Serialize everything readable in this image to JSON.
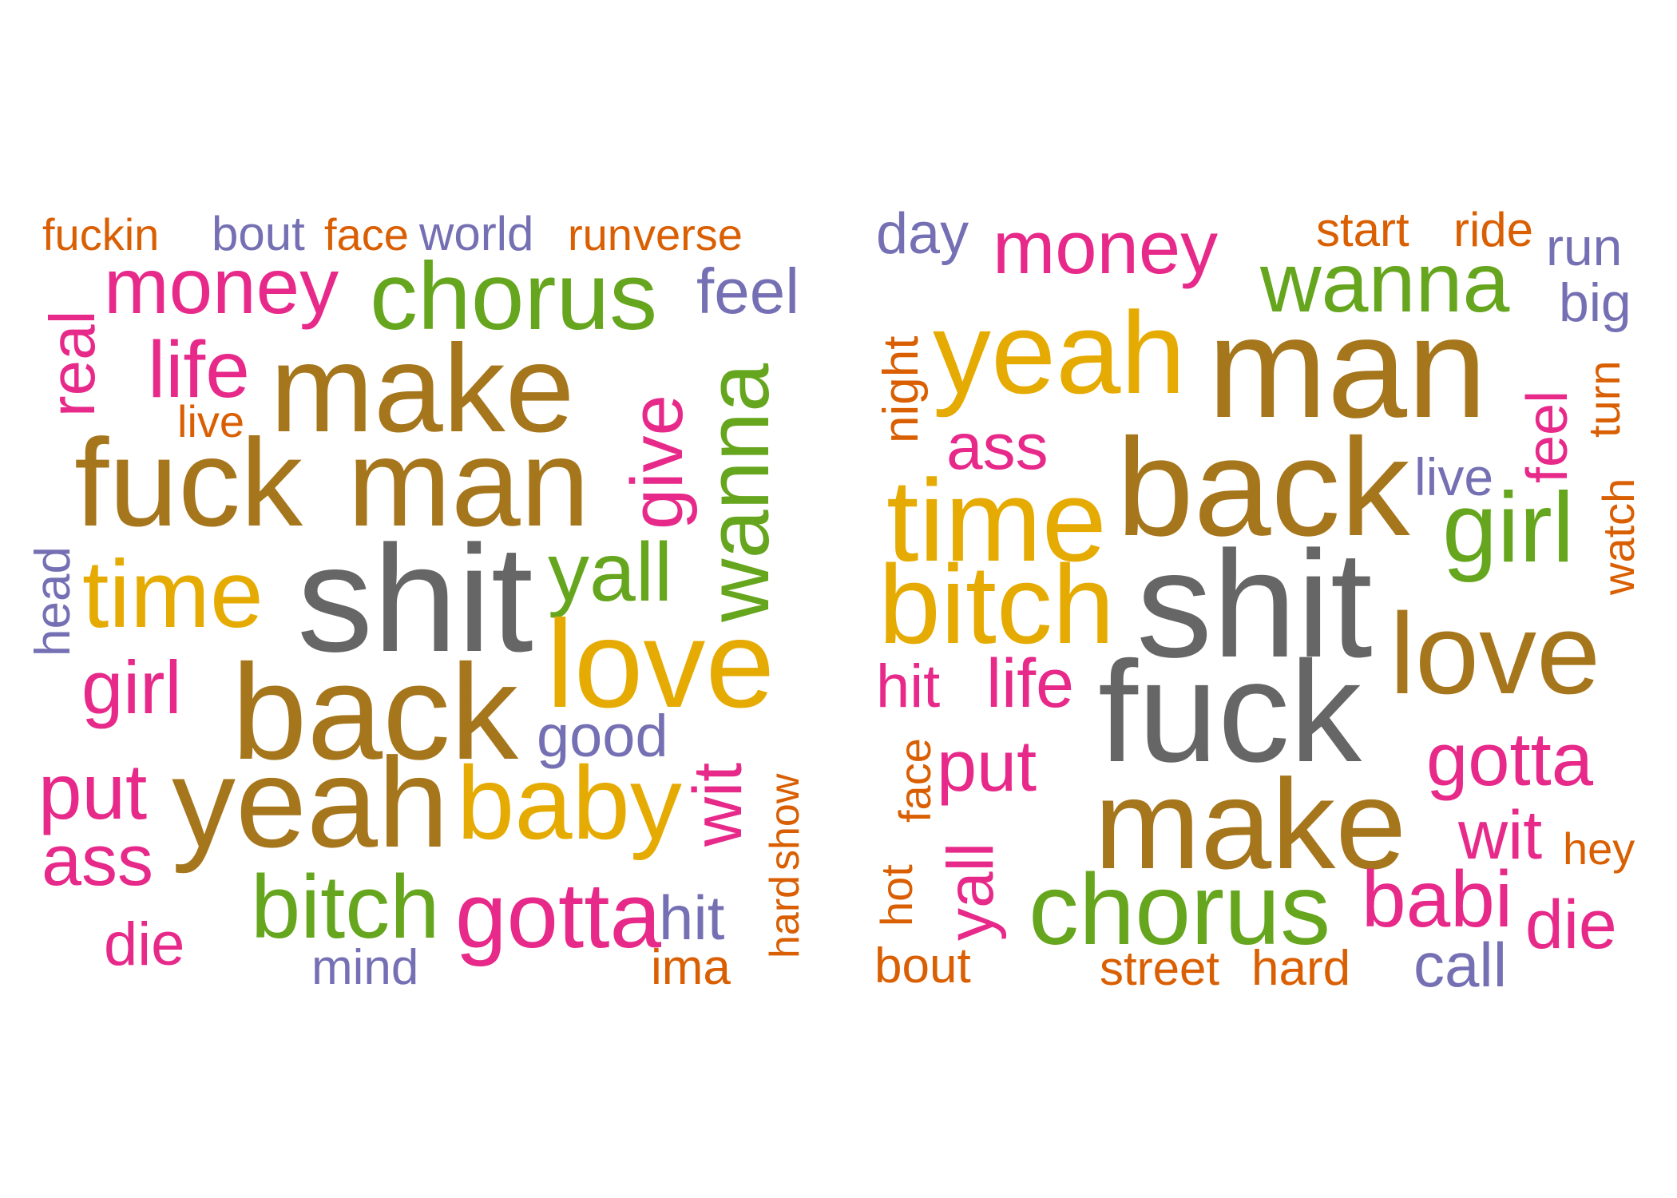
{
  "palette": {
    "orange": "#D95F02",
    "purple": "#7570B3",
    "pink": "#E7298A",
    "green": "#66A61E",
    "gold": "#E6AB02",
    "brown": "#A6761D",
    "gray": "#666666"
  },
  "clouds": [
    {
      "words": [
        {
          "text": "fuckin",
          "color": "orange"
        },
        {
          "text": "bout",
          "color": "purple"
        },
        {
          "text": "face",
          "color": "orange"
        },
        {
          "text": "world",
          "color": "purple"
        },
        {
          "text": "run",
          "color": "orange"
        },
        {
          "text": "verse",
          "color": "orange"
        },
        {
          "text": "money",
          "color": "pink"
        },
        {
          "text": "chorus",
          "color": "green"
        },
        {
          "text": "feel",
          "color": "purple"
        },
        {
          "text": "real",
          "color": "pink"
        },
        {
          "text": "life",
          "color": "pink"
        },
        {
          "text": "make",
          "color": "brown"
        },
        {
          "text": "live",
          "color": "orange"
        },
        {
          "text": "give",
          "color": "pink"
        },
        {
          "text": "wanna",
          "color": "green"
        },
        {
          "text": "fuck",
          "color": "brown"
        },
        {
          "text": "man",
          "color": "brown"
        },
        {
          "text": "head",
          "color": "purple"
        },
        {
          "text": "time",
          "color": "gold"
        },
        {
          "text": "shit",
          "color": "gray"
        },
        {
          "text": "yall",
          "color": "green"
        },
        {
          "text": "love",
          "color": "gold"
        },
        {
          "text": "girl",
          "color": "pink"
        },
        {
          "text": "back",
          "color": "brown"
        },
        {
          "text": "good",
          "color": "purple"
        },
        {
          "text": "hard",
          "color": "orange"
        },
        {
          "text": "show",
          "color": "orange"
        },
        {
          "text": "put",
          "color": "pink"
        },
        {
          "text": "wit",
          "color": "pink"
        },
        {
          "text": "yeah",
          "color": "brown"
        },
        {
          "text": "baby",
          "color": "gold"
        },
        {
          "text": "ass",
          "color": "pink"
        },
        {
          "text": "bitch",
          "color": "green"
        },
        {
          "text": "gotta",
          "color": "pink"
        },
        {
          "text": "hit",
          "color": "purple"
        },
        {
          "text": "die",
          "color": "pink"
        },
        {
          "text": "mind",
          "color": "purple"
        },
        {
          "text": "ima",
          "color": "orange"
        }
      ]
    },
    {
      "words": [
        {
          "text": "day",
          "color": "purple"
        },
        {
          "text": "money",
          "color": "pink"
        },
        {
          "text": "start",
          "color": "orange"
        },
        {
          "text": "ride",
          "color": "orange"
        },
        {
          "text": "run",
          "color": "purple"
        },
        {
          "text": "wanna",
          "color": "green"
        },
        {
          "text": "big",
          "color": "purple"
        },
        {
          "text": "night",
          "color": "orange"
        },
        {
          "text": "yeah",
          "color": "gold"
        },
        {
          "text": "man",
          "color": "brown"
        },
        {
          "text": "feel",
          "color": "pink"
        },
        {
          "text": "turn",
          "color": "orange"
        },
        {
          "text": "ass",
          "color": "pink"
        },
        {
          "text": "live",
          "color": "purple"
        },
        {
          "text": "back",
          "color": "brown"
        },
        {
          "text": "watch",
          "color": "orange"
        },
        {
          "text": "time",
          "color": "gold"
        },
        {
          "text": "girl",
          "color": "green"
        },
        {
          "text": "bitch",
          "color": "gold"
        },
        {
          "text": "shit",
          "color": "gray"
        },
        {
          "text": "love",
          "color": "brown"
        },
        {
          "text": "hit",
          "color": "pink"
        },
        {
          "text": "life",
          "color": "pink"
        },
        {
          "text": "fuck",
          "color": "gray"
        },
        {
          "text": "face",
          "color": "orange"
        },
        {
          "text": "put",
          "color": "pink"
        },
        {
          "text": "gotta",
          "color": "pink"
        },
        {
          "text": "make",
          "color": "brown"
        },
        {
          "text": "wit",
          "color": "pink"
        },
        {
          "text": "hey",
          "color": "orange"
        },
        {
          "text": "hot",
          "color": "orange"
        },
        {
          "text": "yall",
          "color": "pink"
        },
        {
          "text": "chorus",
          "color": "green"
        },
        {
          "text": "babi",
          "color": "pink"
        },
        {
          "text": "die",
          "color": "pink"
        },
        {
          "text": "bout",
          "color": "orange"
        },
        {
          "text": "street",
          "color": "orange"
        },
        {
          "text": "hard",
          "color": "orange"
        },
        {
          "text": "call",
          "color": "purple"
        }
      ]
    }
  ]
}
